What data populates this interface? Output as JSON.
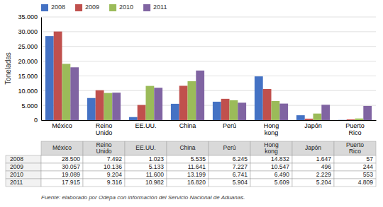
{
  "chart_data": {
    "type": "bar",
    "categories": [
      "México",
      "Reino\nUnido",
      "EE.UU.",
      "China",
      "Perú",
      "Hong\nkong",
      "Japón",
      "Puerto\nRico"
    ],
    "series": [
      {
        "name": "2008",
        "color": "#4472C4",
        "values": [
          28500,
          7492,
          1023,
          5535,
          6245,
          14832,
          1647,
          57
        ],
        "value_labels": [
          "28.500",
          "7.492",
          "1.023",
          "5.535",
          "6.245",
          "14.832",
          "1.647",
          "57"
        ]
      },
      {
        "name": "2009",
        "color": "#C0504D",
        "values": [
          30057,
          10136,
          5133,
          11641,
          7227,
          10547,
          496,
          244
        ],
        "value_labels": [
          "30.057",
          "10.136",
          "5.133",
          "11.641",
          "7.227",
          "10.547",
          "496",
          "244"
        ]
      },
      {
        "name": "2010",
        "color": "#9BBB59",
        "values": [
          19089,
          9204,
          11600,
          13199,
          6741,
          6490,
          2229,
          553
        ],
        "value_labels": [
          "19.089",
          "9.204",
          "11.600",
          "13.199",
          "6.741",
          "6.490",
          "2.229",
          "553"
        ]
      },
      {
        "name": "2011",
        "color": "#8064A2",
        "values": [
          17915,
          9316,
          10982,
          16820,
          5904,
          5609,
          5204,
          4809
        ],
        "value_labels": [
          "17.915",
          "9.316",
          "10.982",
          "16.820",
          "5.904",
          "5.609",
          "5.204",
          "4.809"
        ]
      }
    ],
    "ylabel": "Toneladas",
    "ylim": [
      0,
      35000
    ],
    "yticks": [
      0,
      {
        "value": 5000,
        "label": "5.000"
      },
      {
        "value": 10000,
        "label": "10.000"
      },
      {
        "value": 15000,
        "label": "15.000"
      },
      {
        "value": 20000,
        "label": "20.000"
      },
      {
        "value": 25000,
        "label": "25.000"
      },
      {
        "value": 30000,
        "label": "30.000"
      },
      {
        "value": 35000,
        "label": "35.000"
      }
    ],
    "grid": true,
    "legend": "top",
    "annotations": [
      "Fuente: elaborado por Odepa con información del Servicio Nacional de Aduanas."
    ]
  }
}
